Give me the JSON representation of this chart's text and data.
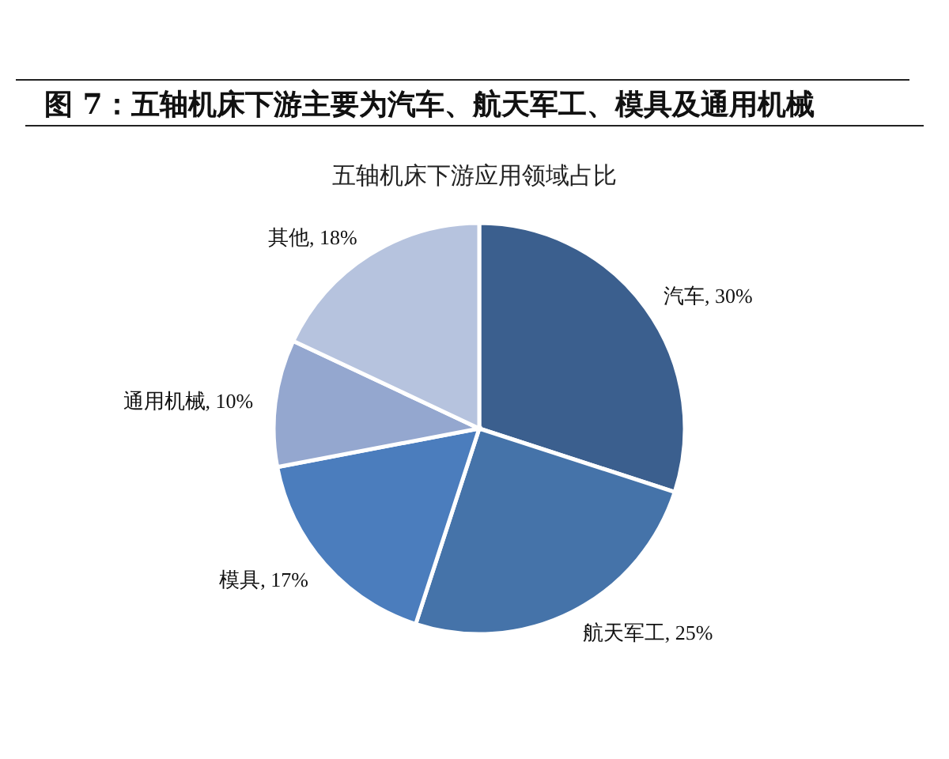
{
  "chart_data": {
    "type": "pie",
    "title": "图 7：五轴机床下游主要为汽车、航天军工、模具及通用机械",
    "subtitle": "五轴机床下游应用领域占比",
    "categories": [
      "汽车",
      "航天军工",
      "模具",
      "通用机械",
      "其他"
    ],
    "values": [
      30,
      25,
      17,
      10,
      18
    ],
    "value_labels": [
      ", 30%",
      ", 25%",
      ", 17%",
      ", 10%",
      ", 18%"
    ],
    "colors": [
      "#3b5f8e",
      "#4573a9",
      "#4b7dbd",
      "#94a7cf",
      "#b6c3de"
    ],
    "legend": false
  }
}
